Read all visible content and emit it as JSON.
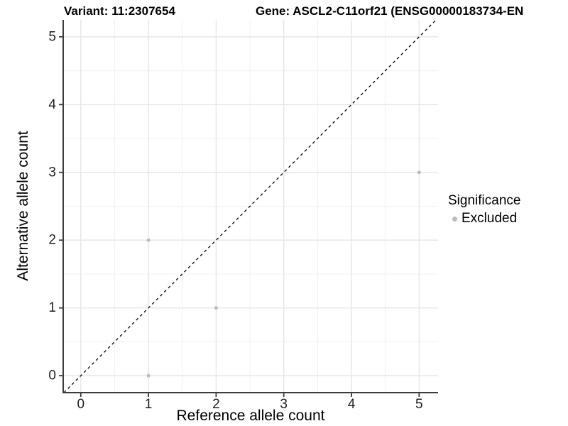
{
  "header": {
    "variant_title": "Variant: 11:2307654",
    "gene_title": "Gene: ASCL2-C11orf21 (ENSG00000183734-EN"
  },
  "chart_data": {
    "type": "scatter",
    "title": "Variant: 11:2307654 / Gene: ASCL2-C11orf21 (ENSG00000183734-EN",
    "xlabel": "Reference allele count",
    "ylabel": "Alternative allele count",
    "xlim": [
      -0.26,
      5.28
    ],
    "ylim": [
      -0.25,
      5.25
    ],
    "xticks": [
      "0",
      "1",
      "2",
      "3",
      "4",
      "5"
    ],
    "yticks": [
      "0",
      "1",
      "2",
      "3",
      "4",
      "5"
    ],
    "minor_gridlines_x": [
      0.5,
      1.5,
      2.5,
      3.5,
      4.5
    ],
    "minor_gridlines_y": [
      0.5,
      1.5,
      2.5,
      3.5,
      4.5
    ],
    "grid": "major+minor",
    "series": [
      {
        "name": "Excluded",
        "color": "#bcbcbc",
        "point_radius": 2.5,
        "points": [
          [
            1,
            0
          ],
          [
            1,
            2
          ],
          [
            2,
            1
          ],
          [
            5,
            3
          ]
        ]
      }
    ],
    "identity_line": {
      "style": "dashed",
      "color": "#000000",
      "from": [
        -0.25,
        -0.25
      ],
      "to": [
        5.25,
        5.25
      ]
    },
    "legend": {
      "title": "Significance",
      "position": "right",
      "entries": [
        {
          "label": "Excluded",
          "color": "#bcbcbc"
        }
      ]
    }
  },
  "colors": {
    "background": "#ffffff",
    "axis_line": "#3c3c3c",
    "tick_mark": "#3c3c3c",
    "grid_major": "#e6e6e6",
    "grid_minor": "#f0f0f0",
    "tick_label": "#1f1f1f",
    "point": "#bcbcbc"
  }
}
